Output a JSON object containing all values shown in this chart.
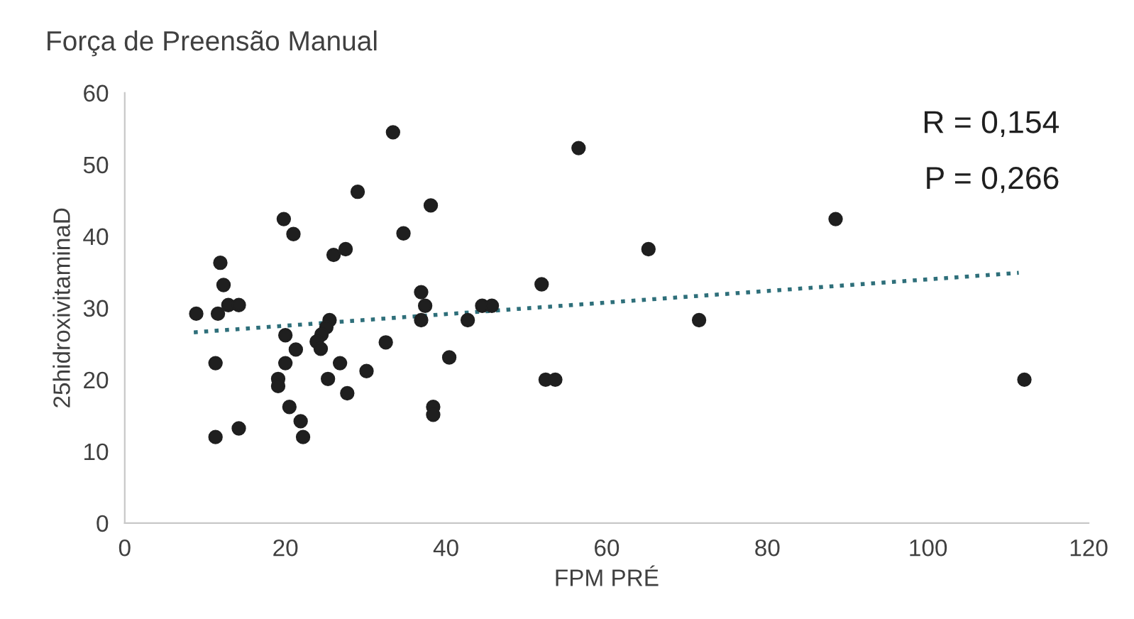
{
  "chart_data": {
    "type": "scatter",
    "title": "Força de Preensão Manual",
    "xlabel": "FPM PRÉ",
    "ylabel": "25hidroxivitaminaD",
    "annotations": [
      "R = 0,154",
      "P = 0,266"
    ],
    "xlim": [
      0,
      120
    ],
    "xticks": [
      0,
      20,
      40,
      60,
      80,
      100,
      120
    ],
    "ylim": [
      0,
      60
    ],
    "yticks": [
      0,
      10,
      20,
      30,
      40,
      50,
      60
    ],
    "grid": false,
    "legend": false,
    "marker": "circle",
    "series": [
      {
        "color": "#1f1f1f",
        "x": [
          33.4,
          29.0,
          19.8,
          21.0,
          26.0,
          27.5,
          11.9,
          12.3,
          8.9,
          11.6,
          12.9,
          14.2,
          25.5,
          25.1,
          24.5,
          23.9,
          24.4,
          20.0,
          21.3,
          20.0,
          32.5,
          11.3,
          26.8,
          30.1,
          19.1,
          19.1,
          25.3,
          27.7,
          20.5,
          21.9,
          22.2,
          11.3,
          14.2,
          56.5,
          38.1,
          34.7,
          65.2,
          36.9,
          37.4,
          36.9,
          51.9,
          44.5,
          45.7,
          42.7,
          71.5,
          40.4,
          52.4,
          53.6,
          38.4,
          38.4,
          88.5,
          112.0
        ],
        "values": [
          54.5,
          46.2,
          42.4,
          40.3,
          37.4,
          38.2,
          36.3,
          33.2,
          29.2,
          29.2,
          30.4,
          30.4,
          28.3,
          27.3,
          26.3,
          25.3,
          24.3,
          26.2,
          24.2,
          22.3,
          25.2,
          22.3,
          22.3,
          21.2,
          20.1,
          19.1,
          20.1,
          18.1,
          16.2,
          14.2,
          12.0,
          12.0,
          13.2,
          52.3,
          44.3,
          40.4,
          38.2,
          32.2,
          30.3,
          28.3,
          33.3,
          30.3,
          30.3,
          28.3,
          28.3,
          23.1,
          20.0,
          20.0,
          16.2,
          15.1,
          42.4,
          20.0
        ]
      },
      {
        "type": "line",
        "color": "#2e6f7a",
        "line_style": "dotted",
        "marker": "none",
        "x": [
          8.6,
          111.3
        ],
        "values": [
          26.6,
          34.9
        ]
      }
    ]
  }
}
